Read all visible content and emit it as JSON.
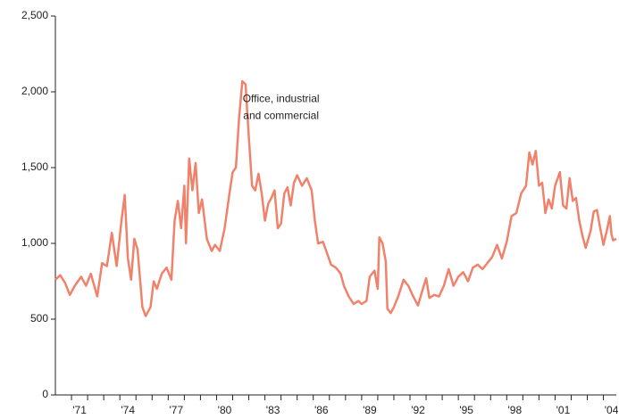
{
  "chart_data": {
    "type": "line",
    "annotation": [
      "Office, industrial",
      "and commercial"
    ],
    "annotation_at": [
      1984,
      1950
    ],
    "color": "#f0826b",
    "x": [
      1970.0,
      1970.3,
      1970.6,
      1970.9,
      1971.2,
      1971.6,
      1971.9,
      1972.2,
      1972.6,
      1972.9,
      1973.2,
      1973.5,
      1973.8,
      1974.1,
      1974.3,
      1974.5,
      1974.7,
      1974.9,
      1975.1,
      1975.4,
      1975.6,
      1975.9,
      1976.1,
      1976.3,
      1976.6,
      1976.9,
      1977.2,
      1977.4,
      1977.6,
      1977.8,
      1978.0,
      1978.1,
      1978.3,
      1978.5,
      1978.7,
      1978.9,
      1979.1,
      1979.4,
      1979.7,
      1979.9,
      1980.2,
      1980.5,
      1980.8,
      1981.0,
      1981.2,
      1981.4,
      1981.6,
      1981.8,
      1982.0,
      1982.2,
      1982.4,
      1982.6,
      1982.8,
      1983.0,
      1983.2,
      1983.4,
      1983.6,
      1983.8,
      1984.0,
      1984.2,
      1984.4,
      1984.6,
      1984.8,
      1985.0,
      1985.3,
      1985.6,
      1985.9,
      1986.1,
      1986.3,
      1986.6,
      1986.9,
      1987.1,
      1987.4,
      1987.7,
      1987.9,
      1988.2,
      1988.5,
      1988.8,
      1989.0,
      1989.3,
      1989.5,
      1989.8,
      1990.0,
      1990.1,
      1990.3,
      1990.5,
      1990.6,
      1990.8,
      1991.0,
      1991.3,
      1991.6,
      1991.9,
      1992.2,
      1992.5,
      1992.8,
      1993.0,
      1993.2,
      1993.5,
      1993.8,
      1994.1,
      1994.4,
      1994.7,
      1995.0,
      1995.3,
      1995.6,
      1995.9,
      1996.2,
      1996.5,
      1996.8,
      1997.1,
      1997.4,
      1997.7,
      1998.0,
      1998.3,
      1998.6,
      1998.9,
      1999.2,
      1999.4,
      1999.6,
      1999.8,
      2000.0,
      2000.2,
      2000.4,
      2000.6,
      2000.8,
      2001.0,
      2001.3,
      2001.5,
      2001.7,
      2001.9,
      2002.1,
      2002.3,
      2002.5,
      2002.7,
      2002.9,
      2003.2,
      2003.4,
      2003.6,
      2003.8,
      2004.0,
      2004.2,
      2004.4,
      2004.5,
      2004.6,
      2004.8
    ],
    "values": [
      760,
      790,
      740,
      660,
      720,
      780,
      720,
      800,
      650,
      870,
      850,
      1070,
      850,
      1150,
      1320,
      900,
      760,
      1030,
      960,
      580,
      520,
      580,
      750,
      700,
      800,
      840,
      760,
      1150,
      1280,
      1100,
      1380,
      1000,
      1560,
      1350,
      1530,
      1200,
      1290,
      1030,
      950,
      990,
      950,
      1100,
      1330,
      1470,
      1500,
      1830,
      2070,
      2050,
      1700,
      1380,
      1350,
      1460,
      1330,
      1150,
      1260,
      1300,
      1350,
      1100,
      1130,
      1330,
      1370,
      1250,
      1400,
      1450,
      1380,
      1430,
      1350,
      1150,
      1000,
      1010,
      920,
      860,
      840,
      800,
      720,
      650,
      600,
      620,
      600,
      620,
      780,
      820,
      700,
      1040,
      1000,
      880,
      570,
      540,
      580,
      660,
      760,
      720,
      650,
      590,
      700,
      770,
      640,
      660,
      650,
      720,
      830,
      720,
      780,
      810,
      750,
      840,
      860,
      830,
      870,
      910,
      990,
      900,
      1010,
      1180,
      1200,
      1330,
      1380,
      1600,
      1520,
      1610,
      1380,
      1400,
      1200,
      1290,
      1230,
      1380,
      1470,
      1250,
      1230,
      1430,
      1280,
      1300,
      1150,
      1050,
      970,
      1080,
      1210,
      1220,
      1100,
      990,
      1080,
      1180,
      1060,
      1020,
      1030
    ],
    "xlim": [
      1970,
      2004.8
    ],
    "xticks": [
      {
        "value": 1971,
        "label": "'71"
      },
      {
        "value": 1974,
        "label": "'74"
      },
      {
        "value": 1977,
        "label": "'77"
      },
      {
        "value": 1980,
        "label": "'80"
      },
      {
        "value": 1983,
        "label": "'83"
      },
      {
        "value": 1986,
        "label": "'86"
      },
      {
        "value": 1989,
        "label": "'89"
      },
      {
        "value": 1992,
        "label": "'92"
      },
      {
        "value": 1995,
        "label": "'95"
      },
      {
        "value": 1998,
        "label": "'98"
      },
      {
        "value": 2001,
        "label": "'01"
      },
      {
        "value": 2004,
        "label": "'04"
      }
    ],
    "xminorticks": [
      1971,
      1972,
      1973,
      1974,
      1975,
      1976,
      1977,
      1978,
      1979,
      1980,
      1981,
      1982,
      1983,
      1984,
      1985,
      1986,
      1987,
      1988,
      1989,
      1990,
      1991,
      1992,
      1993,
      1994,
      1995,
      1996,
      1997,
      1998,
      1999,
      2000,
      2001,
      2002,
      2003,
      2004
    ],
    "ylim": [
      0,
      2500
    ],
    "yticks": [
      0,
      500,
      {
        "value": 1000,
        "label": "1,000"
      },
      {
        "value": 1500,
        "label": "1,500"
      },
      {
        "value": 2000,
        "label": "2,000"
      },
      {
        "value": 2500,
        "label": "2,500"
      }
    ]
  }
}
